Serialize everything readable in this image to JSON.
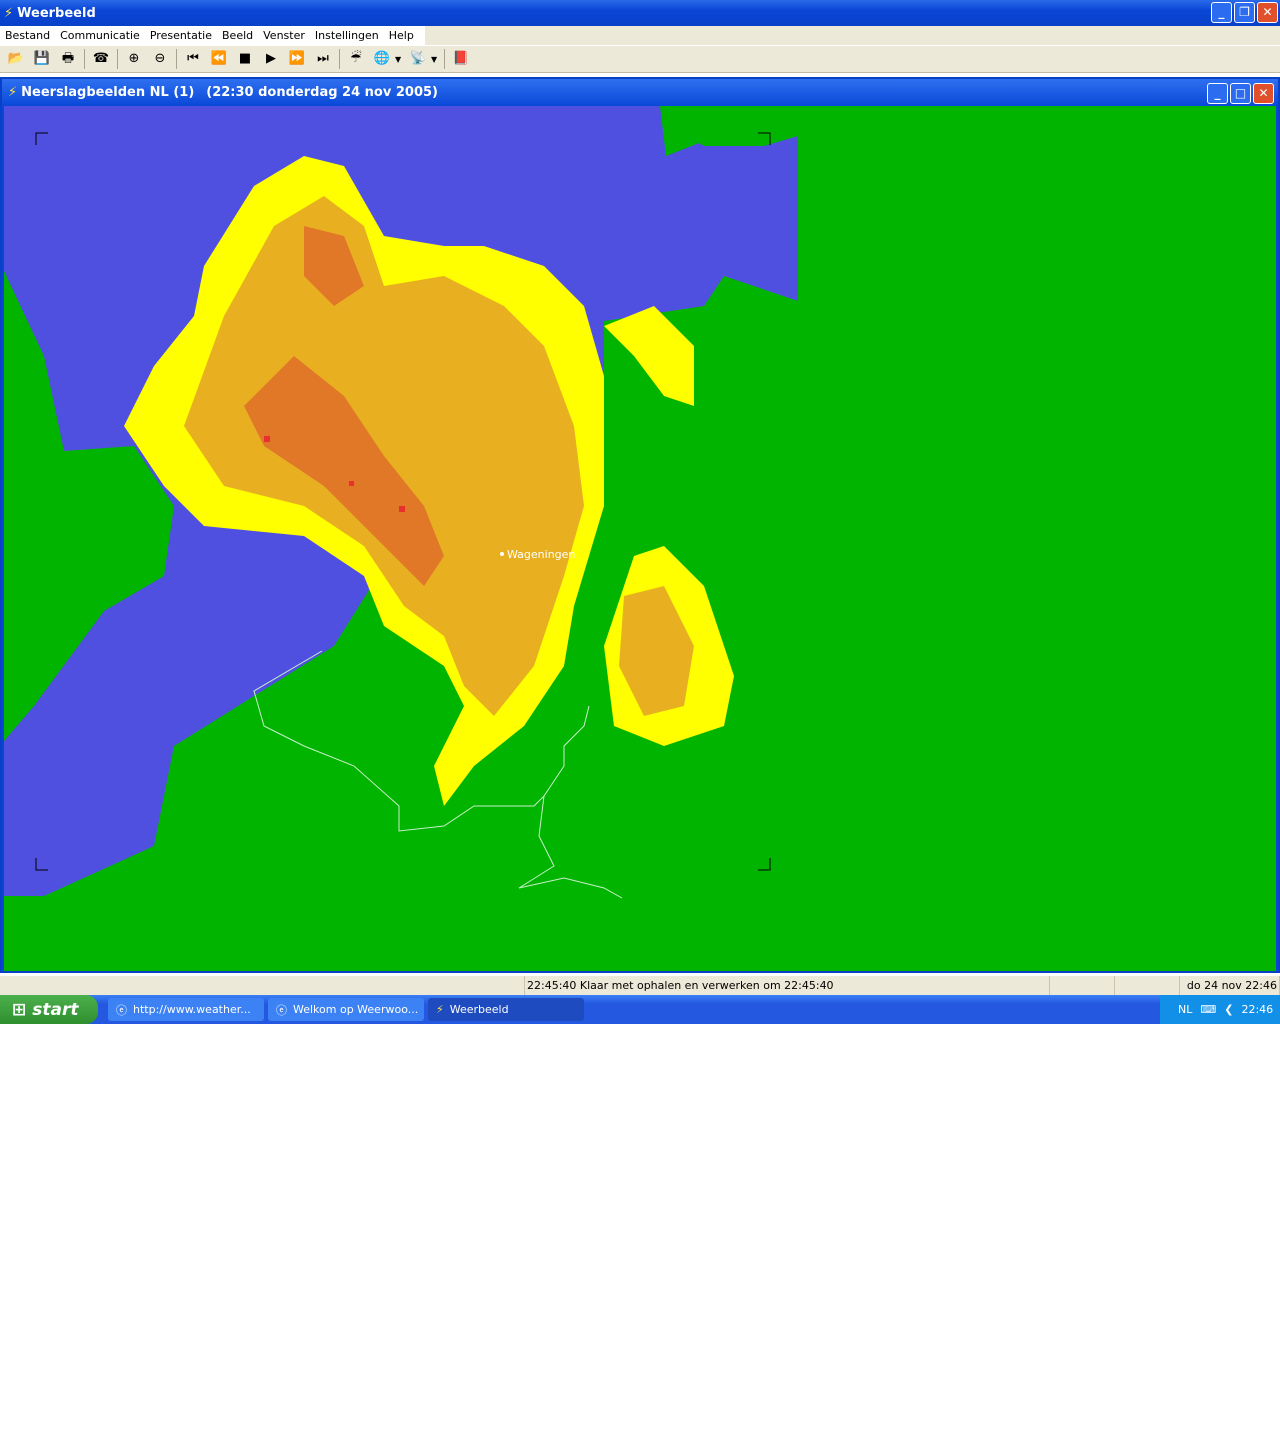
{
  "app": {
    "title": "Weerbeeld",
    "icon": "weerbeeld-lightning-icon"
  },
  "menu": [
    "Bestand",
    "Communicatie",
    "Presentatie",
    "Beeld",
    "Venster",
    "Instellingen",
    "Help"
  ],
  "toolbar": [
    {
      "name": "open-folder-icon",
      "glyph": "📂"
    },
    {
      "name": "save-disk-icon",
      "glyph": "💾"
    },
    {
      "name": "print-icon",
      "glyph": "🖶"
    },
    {
      "name": "phone-connect-icon",
      "glyph": "☎"
    },
    {
      "name": "zoom-in-icon",
      "glyph": "⊕"
    },
    {
      "name": "zoom-out-icon",
      "glyph": "⊖"
    },
    {
      "name": "first-frame-icon",
      "glyph": "⏮"
    },
    {
      "name": "rewind-icon",
      "glyph": "⏪"
    },
    {
      "name": "stop-icon",
      "glyph": "■"
    },
    {
      "name": "play-icon",
      "glyph": "▶"
    },
    {
      "name": "fast-forward-icon",
      "glyph": "⏩"
    },
    {
      "name": "last-frame-icon",
      "glyph": "⏭"
    },
    {
      "name": "rain-cloud-icon",
      "glyph": "☔"
    },
    {
      "name": "globe-icon",
      "glyph": "🌐"
    },
    {
      "name": "satellite-icon",
      "glyph": "📡"
    },
    {
      "name": "help-book-icon",
      "glyph": "📕"
    }
  ],
  "child": {
    "title": "Neerslagbeelden NL (1)",
    "time": "(22:30 donderdag 24 nov 2005)"
  },
  "map": {
    "city": "Wageningen",
    "colors": {
      "sea": "#5050e0",
      "land": "#00b400",
      "rain_light": "#ffff00",
      "rain_mid": "#e8b020",
      "rain_heavy": "#e07828",
      "rain_extreme": "#e83030",
      "border": "#c8f0c8"
    }
  },
  "status": {
    "message": "22:45:40 Klaar met ophalen en verwerken om 22:45:40",
    "datetime": "do 24 nov 22:46"
  },
  "taskbar": {
    "start": "start",
    "tasks": [
      "http://www.weather...",
      "Welkom op Weerwoo...",
      "Weerbeeld"
    ],
    "lang": "NL",
    "clock": "22:46"
  }
}
